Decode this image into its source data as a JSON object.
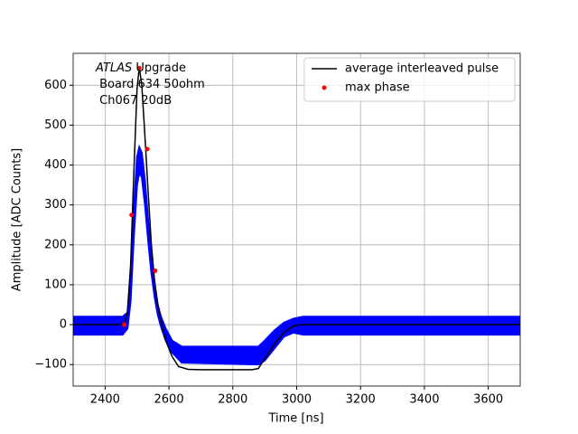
{
  "chart_data": {
    "type": "line",
    "xlabel": "Time [ns]",
    "ylabel": "Amplitude [ADC Counts]",
    "annotation": {
      "italic": "ATLAS",
      "lines": [
        " Upgrade",
        " Board 634 50ohm",
        " Ch067 20dB"
      ]
    },
    "xlim": [
      2300,
      3700
    ],
    "xticks": [
      2400,
      2600,
      2800,
      3000,
      3200,
      3400,
      3600
    ],
    "ylim": [
      -154,
      680
    ],
    "yticks": [
      {
        "value": -100,
        "label": "−100"
      },
      0,
      100,
      200,
      300,
      400,
      500,
      600
    ],
    "grid": true,
    "legend": "upper right",
    "band": {
      "color": "#0000ff",
      "x": [
        2300,
        2455,
        2470,
        2480,
        2490,
        2500,
        2507,
        2515,
        2525,
        2535,
        2545,
        2555,
        2565,
        2575,
        2590,
        2610,
        2640,
        2880,
        2900,
        2930,
        2960,
        2990,
        3020,
        3700
      ],
      "upper": [
        20,
        20,
        30,
        120,
        290,
        420,
        445,
        430,
        360,
        260,
        170,
        100,
        50,
        20,
        -10,
        -40,
        -55,
        -55,
        -40,
        -15,
        5,
        15,
        20,
        20
      ],
      "lower": [
        -25,
        -25,
        -10,
        60,
        220,
        350,
        380,
        370,
        300,
        210,
        130,
        70,
        25,
        -5,
        -40,
        -70,
        -95,
        -100,
        -90,
        -60,
        -30,
        -20,
        -25,
        -25
      ]
    },
    "series": [
      {
        "name": "average interleaved pulse",
        "color": "#000000",
        "kind": "line",
        "x": [
          2300,
          2440,
          2460,
          2470,
          2480,
          2490,
          2500,
          2507,
          2515,
          2525,
          2535,
          2545,
          2555,
          2565,
          2575,
          2590,
          2610,
          2630,
          2660,
          2700,
          2860,
          2880,
          2900,
          2930,
          2960,
          2990,
          3020,
          3700
        ],
        "values": [
          0,
          0,
          2,
          30,
          150,
          380,
          590,
          645,
          600,
          470,
          330,
          200,
          110,
          50,
          10,
          -40,
          -80,
          -105,
          -112,
          -113,
          -113,
          -110,
          -85,
          -50,
          -20,
          -3,
          0,
          0
        ]
      },
      {
        "name": "max phase",
        "color": "#ff0000",
        "kind": "points",
        "x": [
          2460,
          2483,
          2507,
          2532,
          2557
        ],
        "values": [
          0,
          275,
          643,
          440,
          135
        ]
      }
    ]
  }
}
